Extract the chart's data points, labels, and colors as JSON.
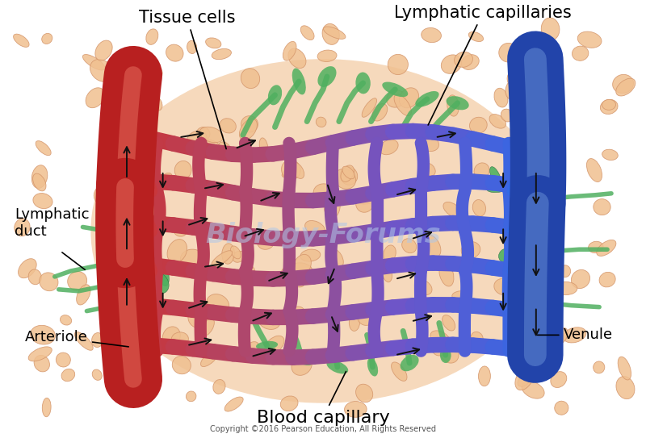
{
  "bg_color": "#ffffff",
  "fig_width": 8.0,
  "fig_height": 5.43,
  "dpi": 100,
  "copyright": "Copyright ©2016 Pearson Education, All Rights Reserved",
  "watermark": "Biology-Forums",
  "labels": {
    "tissue_cells": "Tissue cells",
    "lymphatic_capillaries": "Lymphatic capillaries",
    "lymphatic_duct": "Lymphatic\nduct",
    "arteriole": "Arteriole",
    "venule": "Venule",
    "blood_capillary": "Blood capillary"
  },
  "colors": {
    "arteriole_dark": "#b82020",
    "arteriole_mid": "#d03030",
    "arteriole_light": "#e87060",
    "venule_dark": "#2244aa",
    "venule_mid": "#3a5fc0",
    "venule_light": "#7099dd",
    "cap_red": "#c84040",
    "cap_red2": "#c05060",
    "cap_purple1": "#b06090",
    "cap_purple2": "#9070a8",
    "cap_purple3": "#8080b8",
    "cap_blue1": "#6080c0",
    "cap_blue2": "#4468c0",
    "cap_blue3": "#3a5ab8",
    "tissue_peach": "#f0c090",
    "tissue_edge": "#d4956a",
    "tissue_inner": "#f5d0a8",
    "lymph_green": "#50b060",
    "lymph_green_dark": "#2a7040",
    "bg": "#ffffff",
    "black": "#111111",
    "watermark": "#b0c8e8"
  }
}
